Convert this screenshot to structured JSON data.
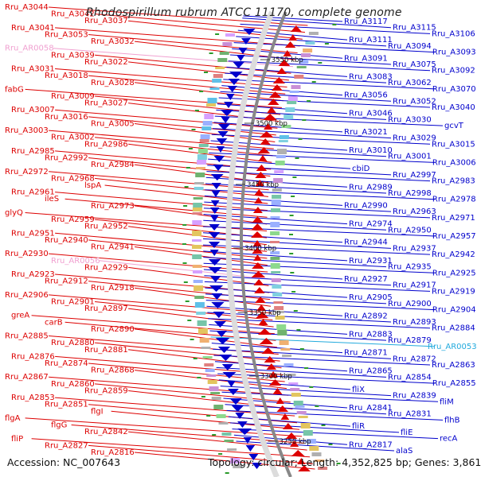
{
  "title": "Rhodospirillum rubrum ATCC 11170, complete genome",
  "accession_text": "Accession: NC_007643",
  "topology_text": "Topology: circular; Length: 4,352,825 bp; Genes: 3,861",
  "colors": {
    "forward": "#dd0000",
    "reverse": "#0000cc",
    "rna_forward": "#f0a0d0",
    "rna_reverse": "#22aadd",
    "backbone": "#888888"
  },
  "scale_labels": [
    "3550 kbp",
    "3500 kbp",
    "3450 kbp",
    "3400 kbp",
    "3350 kbp",
    "3300 kbp",
    "3250 kbp"
  ],
  "left_labels": [
    "Rru_A3044",
    "Rru_A3042",
    "Rru_A3037",
    "Rru_A3041",
    "Rru_A3053",
    "Rru_A3032",
    "Rru_AR0058",
    "Rru_A3039",
    "Rru_A3022",
    "Rru_A3031",
    "Rru_A3018",
    "Rru_A3028",
    "fabG",
    "Rru_A3009",
    "Rru_A3027",
    "Rru_A3007",
    "Rru_A3016",
    "Rru_A3005",
    "Rru_A3003",
    "Rru_A3002",
    "Rru_A2986",
    "Rru_A2985",
    "Rru_A2992",
    "Rru_A2984",
    "Rru_A2972",
    "Rru_A2968",
    "lspA",
    "Rru_A2961",
    "ileS",
    "Rru_A2973",
    "glyQ",
    "Rru_A2959",
    "Rru_A2952",
    "Rru_A2951",
    "Rru_A2940",
    "Rru_A2941",
    "Rru_A2930",
    "Rru_AR0056",
    "Rru_A2929",
    "Rru_A2923",
    "Rru_A2912",
    "Rru_A2918",
    "Rru_A2906",
    "Rru_A2901",
    "Rru_A2897",
    "greA",
    "carB",
    "Rru_A2890",
    "Rru_A2885",
    "Rru_A2880",
    "Rru_A2881",
    "Rru_A2876",
    "Rru_A2874",
    "Rru_A2868",
    "Rru_A2867",
    "Rru_A2860",
    "Rru_A2859",
    "Rru_A2853",
    "Rru_A2851",
    "flgI",
    "flgA",
    "flgG",
    "Rru_A2842",
    "fliP",
    "Rru_A2827",
    "Rru_A2816"
  ],
  "right_labels": [
    "Rru_A3117",
    "Rru_A3115",
    "Rru_A3106",
    "Rru_A3111",
    "Rru_A3094",
    "Rru_A3093",
    "Rru_A3091",
    "Rru_A3075",
    "Rru_A3092",
    "Rru_A3083",
    "Rru_A3062",
    "Rru_A3070",
    "Rru_A3056",
    "Rru_A3052",
    "Rru_A3040",
    "Rru_A3046",
    "Rru_A3030",
    "gcvT",
    "Rru_A3021",
    "Rru_A3029",
    "Rru_A3015",
    "Rru_A3010",
    "Rru_A3001",
    "Rru_A3006",
    "cbiD",
    "Rru_A2997",
    "Rru_A2983",
    "Rru_A2989",
    "Rru_A2998",
    "Rru_A2978",
    "Rru_A2990",
    "Rru_A2963",
    "Rru_A2971",
    "Rru_A2974",
    "Rru_A2950",
    "Rru_A2957",
    "Rru_A2944",
    "Rru_A2937",
    "Rru_A2942",
    "Rru_A2931",
    "Rru_A2935",
    "Rru_A2925",
    "Rru_A2927",
    "Rru_A2917",
    "Rru_A2919",
    "Rru_A2905",
    "Rru_A2900",
    "Rru_A2904",
    "Rru_A2892",
    "Rru_A2893",
    "Rru_A2884",
    "Rru_A2883",
    "Rru_A2879",
    "Rru_AR0053",
    "Rru_A2871",
    "Rru_A2872",
    "Rru_A2863",
    "Rru_A2865",
    "Rru_A2854",
    "Rru_A2855",
    "fliX",
    "Rru_A2839",
    "fliM",
    "Rru_A2841",
    "Rru_A2831",
    "flhB",
    "fliR",
    "fliE",
    "recA",
    "Rru_A2817",
    "alaS"
  ]
}
